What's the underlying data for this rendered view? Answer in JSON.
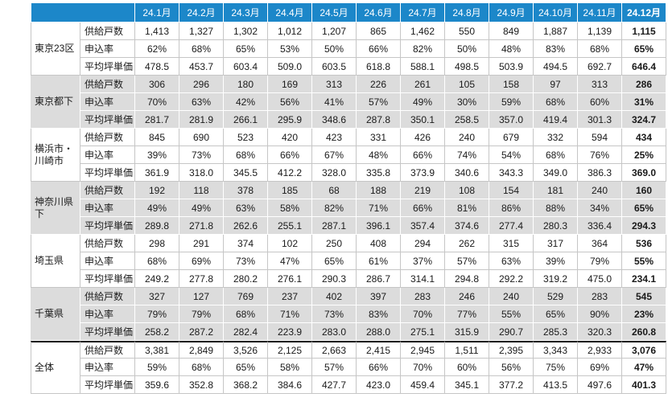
{
  "table": {
    "corner_label": "",
    "months": [
      "24.1月",
      "24.2月",
      "24.3月",
      "24.4月",
      "24.5月",
      "24.6月",
      "24.7月",
      "24.8月",
      "24.9月",
      "24.10月",
      "24.11月",
      "24.12月"
    ],
    "metric_labels": [
      "供給戸数",
      "申込率",
      "平均坪単価"
    ],
    "groups": [
      {
        "name": "東京23区",
        "shaded": false,
        "thick_top": false,
        "rows": [
          {
            "label": "供給戸数",
            "values": [
              "1,413",
              "1,327",
              "1,302",
              "1,012",
              "1,207",
              "865",
              "1,462",
              "550",
              "849",
              "1,887",
              "1,139",
              "1,115"
            ]
          },
          {
            "label": "申込率",
            "values": [
              "62%",
              "68%",
              "65%",
              "53%",
              "50%",
              "66%",
              "82%",
              "50%",
              "48%",
              "83%",
              "68%",
              "65%"
            ]
          },
          {
            "label": "平均坪単価",
            "values": [
              "478.5",
              "453.7",
              "603.4",
              "509.0",
              "603.5",
              "618.8",
              "588.1",
              "498.5",
              "503.9",
              "494.5",
              "692.7",
              "646.4"
            ]
          }
        ]
      },
      {
        "name": "東京都下",
        "shaded": true,
        "thick_top": false,
        "rows": [
          {
            "label": "供給戸数",
            "values": [
              "306",
              "296",
              "180",
              "169",
              "313",
              "226",
              "261",
              "105",
              "158",
              "97",
              "313",
              "286"
            ]
          },
          {
            "label": "申込率",
            "values": [
              "70%",
              "63%",
              "42%",
              "56%",
              "41%",
              "57%",
              "49%",
              "30%",
              "59%",
              "68%",
              "60%",
              "31%"
            ]
          },
          {
            "label": "平均坪単価",
            "values": [
              "281.7",
              "281.9",
              "266.1",
              "295.9",
              "348.6",
              "287.8",
              "350.1",
              "258.5",
              "357.0",
              "419.4",
              "301.3",
              "324.7"
            ]
          }
        ]
      },
      {
        "name": "横浜市・川崎市",
        "shaded": false,
        "thick_top": false,
        "rows": [
          {
            "label": "供給戸数",
            "values": [
              "845",
              "690",
              "523",
              "420",
              "423",
              "331",
              "426",
              "240",
              "679",
              "332",
              "594",
              "434"
            ]
          },
          {
            "label": "申込率",
            "values": [
              "39%",
              "73%",
              "68%",
              "66%",
              "67%",
              "48%",
              "66%",
              "74%",
              "54%",
              "68%",
              "76%",
              "25%"
            ]
          },
          {
            "label": "平均坪単価",
            "values": [
              "361.9",
              "318.0",
              "345.5",
              "412.2",
              "328.0",
              "335.8",
              "373.9",
              "340.6",
              "343.3",
              "349.0",
              "386.3",
              "369.0"
            ]
          }
        ]
      },
      {
        "name": "神奈川県下",
        "shaded": true,
        "thick_top": false,
        "rows": [
          {
            "label": "供給戸数",
            "values": [
              "192",
              "118",
              "378",
              "185",
              "68",
              "188",
              "219",
              "108",
              "154",
              "181",
              "240",
              "160"
            ]
          },
          {
            "label": "申込率",
            "values": [
              "49%",
              "49%",
              "63%",
              "58%",
              "82%",
              "71%",
              "66%",
              "81%",
              "86%",
              "88%",
              "34%",
              "65%"
            ]
          },
          {
            "label": "平均坪単価",
            "values": [
              "289.8",
              "271.8",
              "262.6",
              "255.1",
              "287.1",
              "396.1",
              "357.4",
              "374.6",
              "277.4",
              "280.3",
              "336.4",
              "294.3"
            ]
          }
        ]
      },
      {
        "name": "埼玉県",
        "shaded": false,
        "thick_top": false,
        "rows": [
          {
            "label": "供給戸数",
            "values": [
              "298",
              "291",
              "374",
              "102",
              "250",
              "408",
              "294",
              "262",
              "315",
              "317",
              "364",
              "536"
            ]
          },
          {
            "label": "申込率",
            "values": [
              "68%",
              "69%",
              "73%",
              "47%",
              "65%",
              "61%",
              "37%",
              "57%",
              "63%",
              "39%",
              "79%",
              "55%"
            ]
          },
          {
            "label": "平均坪単価",
            "values": [
              "249.2",
              "277.8",
              "280.2",
              "276.1",
              "290.3",
              "286.7",
              "314.1",
              "294.8",
              "292.2",
              "319.2",
              "475.0",
              "234.1"
            ]
          }
        ]
      },
      {
        "name": "千葉県",
        "shaded": true,
        "thick_top": false,
        "rows": [
          {
            "label": "供給戸数",
            "values": [
              "327",
              "127",
              "769",
              "237",
              "402",
              "397",
              "283",
              "246",
              "240",
              "529",
              "283",
              "545"
            ]
          },
          {
            "label": "申込率",
            "values": [
              "79%",
              "79%",
              "68%",
              "71%",
              "73%",
              "83%",
              "70%",
              "77%",
              "55%",
              "65%",
              "90%",
              "23%"
            ]
          },
          {
            "label": "平均坪単価",
            "values": [
              "258.2",
              "287.2",
              "282.4",
              "223.9",
              "283.0",
              "288.0",
              "275.1",
              "315.9",
              "290.7",
              "285.3",
              "320.3",
              "260.8"
            ]
          }
        ]
      },
      {
        "name": "全体",
        "shaded": false,
        "thick_top": true,
        "rows": [
          {
            "label": "供給戸数",
            "values": [
              "3,381",
              "2,849",
              "3,526",
              "2,125",
              "2,663",
              "2,415",
              "2,945",
              "1,511",
              "2,395",
              "3,343",
              "2,933",
              "3,076"
            ]
          },
          {
            "label": "申込率",
            "values": [
              "59%",
              "68%",
              "65%",
              "58%",
              "57%",
              "66%",
              "70%",
              "60%",
              "56%",
              "75%",
              "69%",
              "47%"
            ]
          },
          {
            "label": "平均坪単価",
            "values": [
              "359.6",
              "352.8",
              "368.2",
              "384.6",
              "427.7",
              "423.0",
              "459.4",
              "345.1",
              "377.2",
              "413.5",
              "497.6",
              "401.3"
            ]
          }
        ]
      }
    ]
  },
  "colors": {
    "header_bg": "#1c87c9",
    "header_text": "#ffffff",
    "shaded_row_bg": "#dcdcdc",
    "border_light": "#c6c6c6",
    "thick_divider": "#0d0d0d",
    "text": "#1a1a1a"
  }
}
